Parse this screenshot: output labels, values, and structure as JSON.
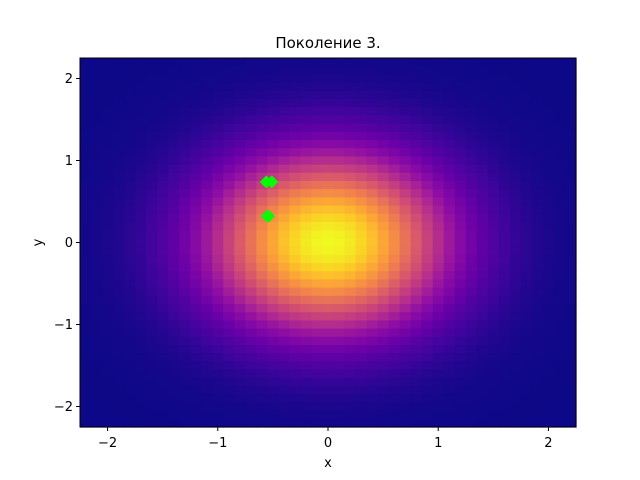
{
  "chart_data": {
    "type": "heatmap",
    "title": "Поколение 3.",
    "xlabel": "x",
    "ylabel": "y",
    "xlim": [
      -2.25,
      2.25
    ],
    "ylim": [
      -2.25,
      2.25
    ],
    "xticks": [
      {
        "value": -2,
        "label": "−2"
      },
      {
        "value": -1,
        "label": "−1"
      },
      {
        "value": 0,
        "label": "0"
      },
      {
        "value": 1,
        "label": "1"
      },
      {
        "value": 2,
        "label": "2"
      }
    ],
    "yticks": [
      {
        "value": -2,
        "label": "−2"
      },
      {
        "value": -1,
        "label": "−1"
      },
      {
        "value": 0,
        "label": "0"
      },
      {
        "value": 1,
        "label": "1"
      },
      {
        "value": 2,
        "label": "2"
      }
    ],
    "colormap": "plasma",
    "grid_cells": 45,
    "surface": {
      "function": "gaussian",
      "center": [
        0,
        0
      ],
      "sigma": 0.75
    },
    "grid": false,
    "points": {
      "color": "#00ff00",
      "marker": "diamond",
      "values": [
        {
          "x": -0.56,
          "y": 0.74
        },
        {
          "x": -0.51,
          "y": 0.74
        },
        {
          "x": -0.55,
          "y": 0.32
        },
        {
          "x": -0.54,
          "y": 0.32
        }
      ]
    }
  }
}
